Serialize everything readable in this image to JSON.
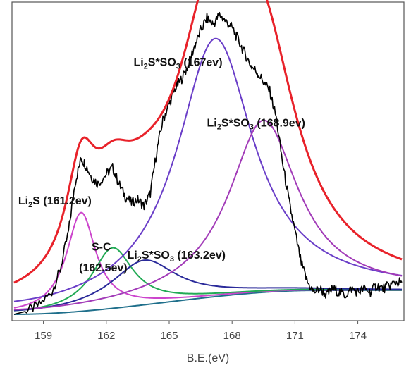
{
  "chart_data": {
    "type": "line",
    "title": "",
    "xlabel": "B.E.(eV)",
    "ylabel": "",
    "xlim": [
      157.5,
      176.2
    ],
    "ylim": [
      0,
      100
    ],
    "x_ticks": [
      159,
      162,
      165,
      168,
      171,
      174
    ],
    "grid": false,
    "legend": "none",
    "annotations": [
      {
        "name": "ann-li2s",
        "parts": [
          {
            "t": "Li"
          },
          {
            "t": "2",
            "sub": true
          },
          {
            "t": "S (161.2ev)"
          }
        ],
        "x": 157.8,
        "y": 36.5
      },
      {
        "name": "ann-sc",
        "parts": [
          {
            "t": "S-C"
          }
        ],
        "x": 161.3,
        "y": 22
      },
      {
        "name": "ann-sc-ev",
        "parts": [
          {
            "t": "(162.5ev)"
          }
        ],
        "x": 160.7,
        "y": 15.5
      },
      {
        "name": "ann-li2so3-163",
        "parts": [
          {
            "t": "Li"
          },
          {
            "t": "2",
            "sub": true
          },
          {
            "t": "S*SO"
          },
          {
            "t": "3",
            "sub": true
          },
          {
            "t": " (163.2ev)"
          }
        ],
        "x": 163.0,
        "y": 19.5
      },
      {
        "name": "ann-li2so3-167",
        "parts": [
          {
            "t": "Li"
          },
          {
            "t": "2",
            "sub": true
          },
          {
            "t": "S*SO"
          },
          {
            "t": "3",
            "sub": true
          },
          {
            "t": " (167ev)"
          }
        ],
        "x": 163.3,
        "y": 80
      },
      {
        "name": "ann-li2so3-168",
        "parts": [
          {
            "t": "Li"
          },
          {
            "t": "2",
            "sub": true
          },
          {
            "t": "S*SO"
          },
          {
            "t": "3",
            "sub": true
          },
          {
            "t": " (168.9ev)"
          }
        ],
        "x": 166.8,
        "y": 61
      }
    ],
    "series": [
      {
        "kind": "raw",
        "color": "#000000",
        "x": [
          157.6,
          158.2,
          158.8,
          159.4,
          159.8,
          160.2,
          160.5,
          160.8,
          161.0,
          161.3,
          161.6,
          162.0,
          162.3,
          162.6,
          162.9,
          163.2,
          163.5,
          163.8,
          164.1,
          164.4,
          164.7,
          165.0,
          165.3,
          165.6,
          165.9,
          166.2,
          166.5,
          166.8,
          167.1,
          167.4,
          167.7,
          168.0,
          168.3,
          168.6,
          168.9,
          169.2,
          169.5,
          169.8,
          170.1,
          170.4,
          170.7,
          171.0,
          171.3,
          171.6,
          171.9,
          172.2,
          172.5,
          172.8,
          173.1,
          173.4,
          173.7,
          174.0,
          174.3,
          174.6,
          174.9,
          175.2,
          175.5,
          175.8,
          176.1
        ],
        "y": [
          2,
          3,
          5,
          9,
          16,
          28,
          43,
          51,
          49,
          45,
          43,
          46,
          48,
          43,
          39,
          37,
          38,
          36,
          40,
          53,
          63,
          68,
          73,
          76,
          80,
          86,
          91,
          95,
          93,
          96,
          94,
          92,
          88,
          84,
          80,
          78,
          75,
          72,
          64,
          50,
          38,
          28,
          18,
          12,
          9,
          10,
          8,
          10,
          9,
          8,
          10,
          9,
          10,
          9,
          11,
          10,
          11,
          12,
          12
        ]
      },
      {
        "kind": "envelope",
        "color": "#e8222a",
        "from": 157.6,
        "to": 176.1
      },
      {
        "kind": "component",
        "color": "#cc44cc",
        "center": 160.8,
        "height": 31,
        "width": 0.85
      },
      {
        "kind": "component",
        "color": "#22aa55",
        "center": 162.3,
        "height": 19,
        "width": 1.2
      },
      {
        "kind": "component",
        "color": "#2a2a9a",
        "center": 163.8,
        "height": 14,
        "width": 1.9
      },
      {
        "kind": "component",
        "color": "#6a3ec8",
        "center": 167.2,
        "height": 81,
        "width": 2.2
      },
      {
        "kind": "component",
        "color": "#a23bb8",
        "center": 169.5,
        "height": 54,
        "width": 2.0
      }
    ],
    "baseline": {
      "y0": 2,
      "y1": 9.5,
      "x0": 157.6,
      "x1": 172.0,
      "x_end": 176.1
    }
  }
}
